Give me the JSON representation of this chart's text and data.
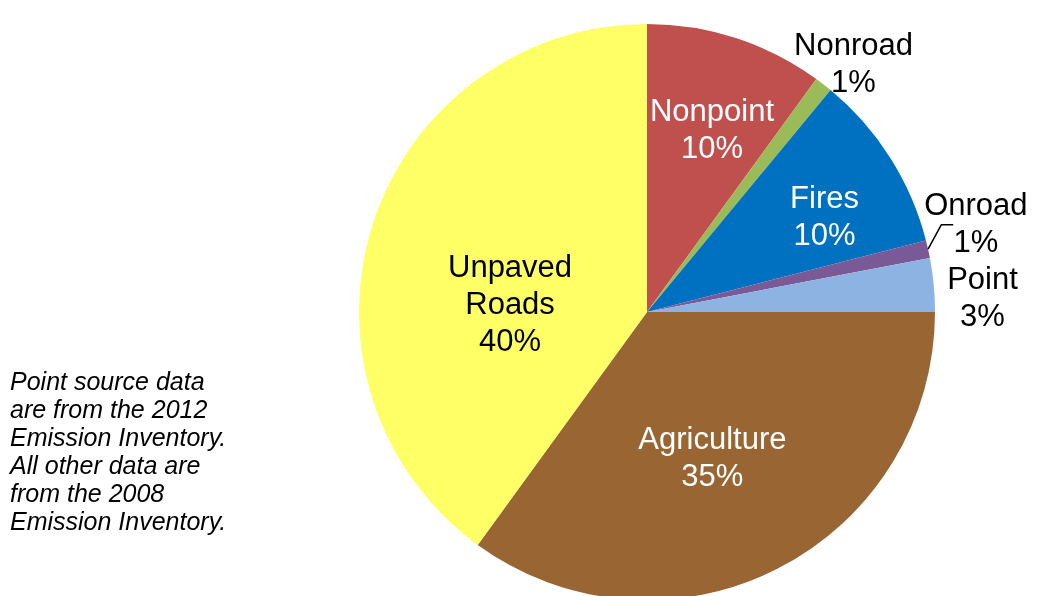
{
  "chart_data": {
    "type": "pie",
    "categories": [
      "Nonpoint",
      "Nonroad",
      "Fires",
      "Onroad",
      "Point",
      "Agriculture",
      "Unpaved Roads"
    ],
    "values": [
      10,
      1,
      10,
      1,
      3,
      35,
      40
    ],
    "value_labels": [
      "10%",
      "1%",
      "10%",
      "1%",
      "3%",
      "35%",
      "40%"
    ],
    "colors": [
      "#c0504d",
      "#9bbb59",
      "#0070c0",
      "#7a5a96",
      "#8db3e2",
      "#996633",
      "#ffff66"
    ],
    "annotations": [
      "Point source data are from the 2012 Emission Inventory.",
      "All other data are from the 2008 Emission Inventory."
    ]
  }
}
